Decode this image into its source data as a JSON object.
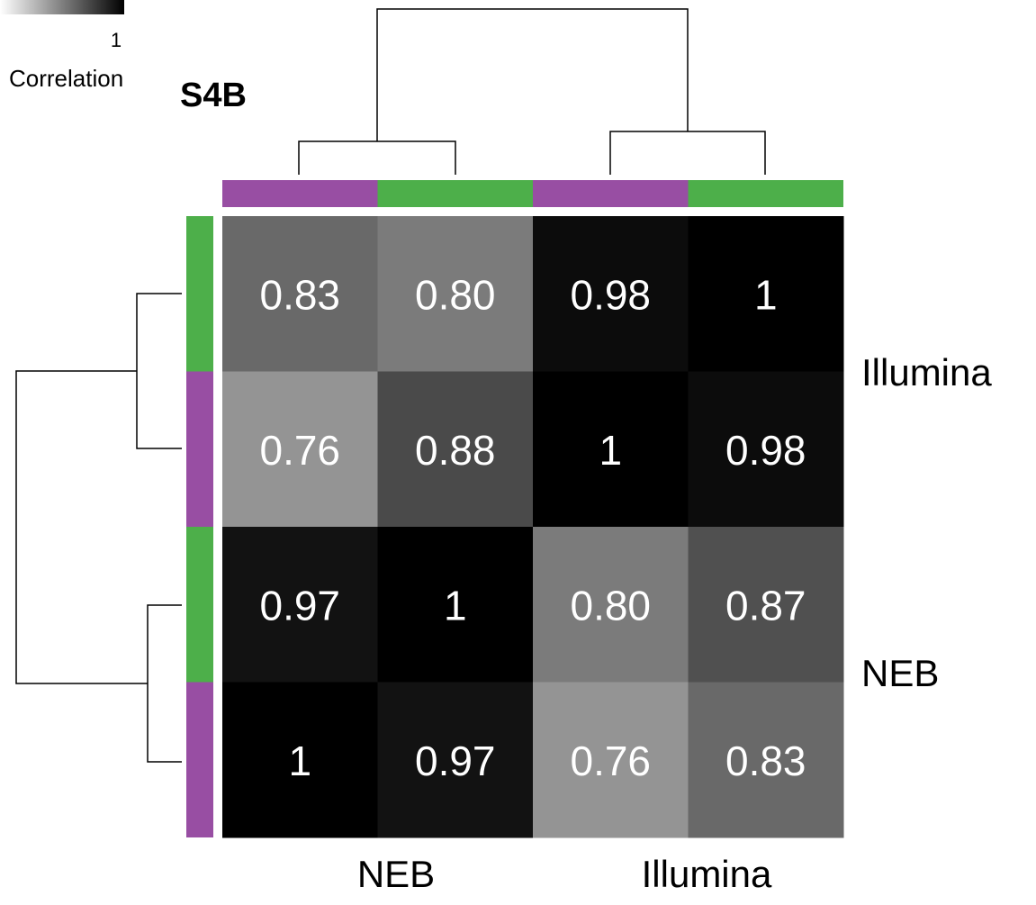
{
  "figure_label": "S4B",
  "colorbar": {
    "tick_label": "1",
    "label": "Correlation"
  },
  "annotation_colors": {
    "purple": "#984ea3",
    "green": "#4daf4a"
  },
  "chart_data": {
    "type": "heatmap",
    "title": "S4B",
    "color_scale": {
      "label": "Correlation",
      "low_color": "#ffffff",
      "high_color": "#000000",
      "shown_tick": 1
    },
    "column_annotation": [
      "purple",
      "green",
      "purple",
      "green"
    ],
    "row_annotation": [
      "green",
      "purple",
      "green",
      "purple"
    ],
    "column_group_labels": [
      "NEB",
      "Illumina"
    ],
    "row_group_labels": [
      "Illumina",
      "NEB"
    ],
    "cell_labels": [
      [
        "0.83",
        "0.80",
        "0.98",
        "1"
      ],
      [
        "0.76",
        "0.88",
        "1",
        "0.98"
      ],
      [
        "0.97",
        "1",
        "0.80",
        "0.87"
      ],
      [
        "1",
        "0.97",
        "0.76",
        "0.83"
      ]
    ],
    "values": [
      [
        0.83,
        0.8,
        0.98,
        1.0
      ],
      [
        0.76,
        0.88,
        1.0,
        0.98
      ],
      [
        0.97,
        1.0,
        0.8,
        0.87
      ],
      [
        1.0,
        0.97,
        0.76,
        0.83
      ]
    ],
    "row_dendrogram": "rows 1-2 joined, rows 3-4 joined, then both clusters joined",
    "column_dendrogram": "cols 1-2 joined, cols 3-4 joined, then both clusters joined",
    "legend_placement": "top-left"
  }
}
